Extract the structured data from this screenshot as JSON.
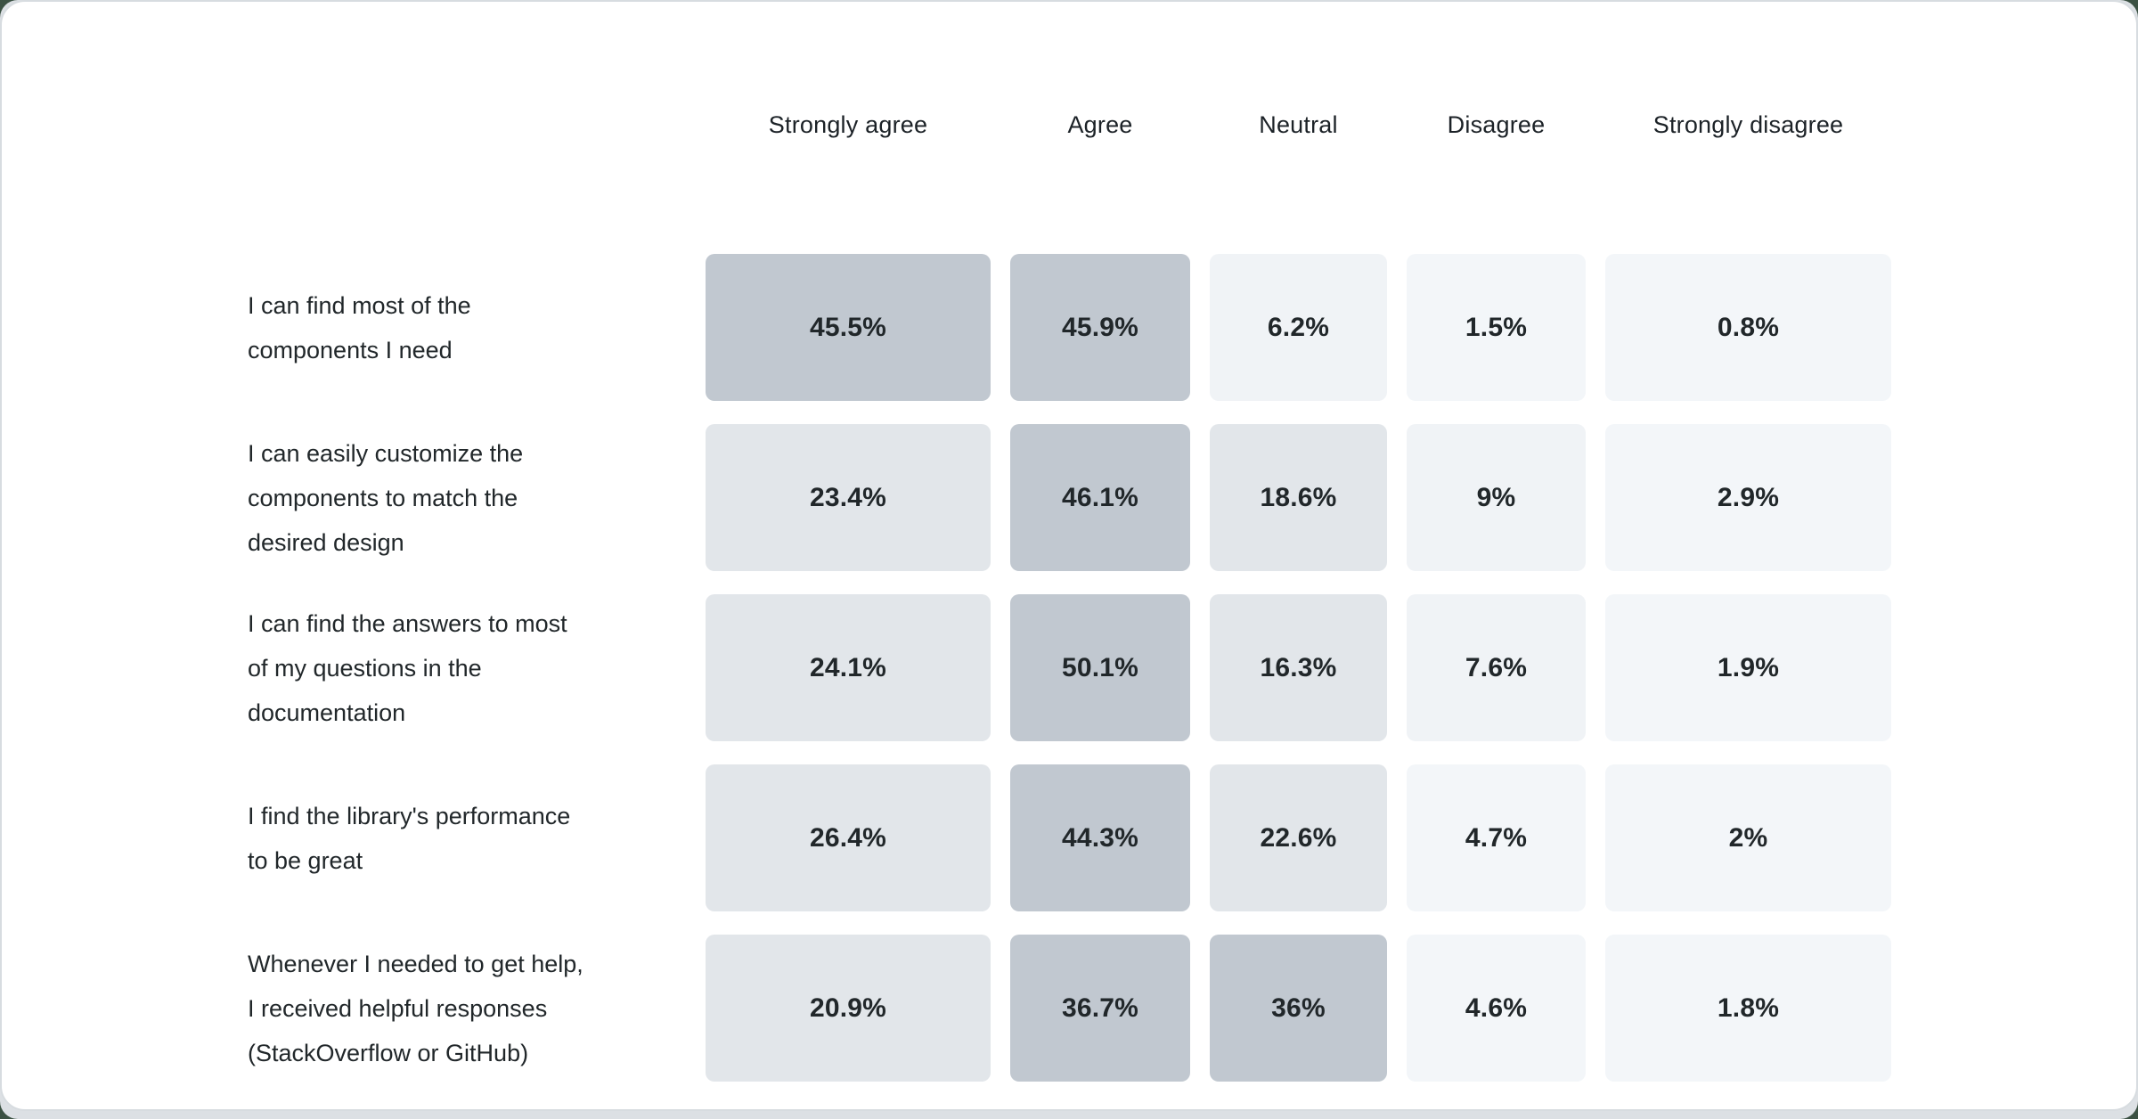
{
  "page": {
    "background_color": "#3b5143",
    "frame_color": "#dce0e4",
    "card_color": "#ffffff",
    "card_border_color": "#d7dce0"
  },
  "chart_data": {
    "type": "heatmap",
    "title": "",
    "value_format": "percent",
    "legend_position": "none",
    "grid": false,
    "columns": [
      "Strongly agree",
      "Agree",
      "Neutral",
      "Disagree",
      "Strongly disagree"
    ],
    "rows": [
      {
        "label": "I can find most of the\ncomponents I need",
        "values": [
          45.5,
          45.9,
          6.2,
          1.5,
          0.8
        ]
      },
      {
        "label": "I can easily customize the\ncomponents to match the\ndesired design",
        "values": [
          23.4,
          46.1,
          18.6,
          9,
          2.9
        ]
      },
      {
        "label": "I can find the answers to most\nof my questions in the\ndocumentation",
        "values": [
          24.1,
          50.1,
          16.3,
          7.6,
          1.9
        ]
      },
      {
        "label": "I find the library's performance\nto be great",
        "values": [
          26.4,
          44.3,
          22.6,
          4.7,
          2
        ]
      },
      {
        "label": "Whenever I needed to get help,\nI received helpful responses\n(StackOverflow or GitHub)",
        "values": [
          20.9,
          36.7,
          36,
          4.6,
          1.8
        ]
      }
    ],
    "color_scale": {
      "thresholds": [
        30,
        15,
        5
      ],
      "colors": [
        "#c1c8d0",
        "#e2e6ea",
        "#f0f3f6",
        "#f3f6f9"
      ],
      "text_color": "#21272a"
    }
  }
}
